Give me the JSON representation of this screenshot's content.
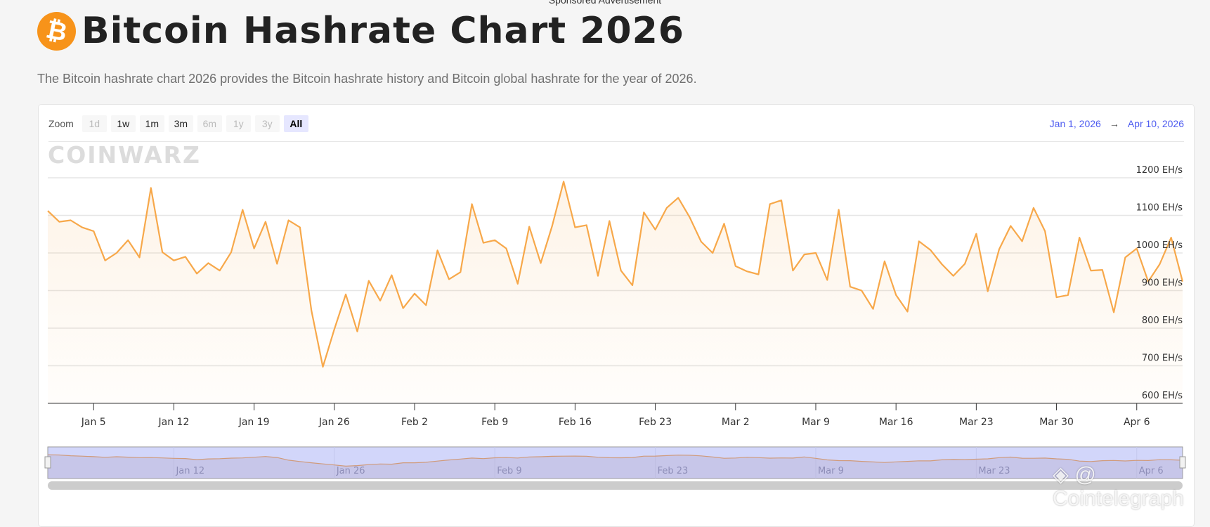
{
  "sponsored": "Sponsored Advertisement",
  "header": {
    "icon": "bitcoin-icon",
    "icon_glyph": "₿",
    "title": "Bitcoin Hashrate Chart 2026",
    "subtitle": "The Bitcoin hashrate chart 2026 provides the Bitcoin hashrate history and Bitcoin global hashrate for the year of 2026."
  },
  "toolbar": {
    "zoom_label": "Zoom",
    "buttons": [
      {
        "label": "1d",
        "state": "disabled"
      },
      {
        "label": "1w",
        "state": "enabled"
      },
      {
        "label": "1m",
        "state": "enabled"
      },
      {
        "label": "3m",
        "state": "enabled"
      },
      {
        "label": "6m",
        "state": "disabled"
      },
      {
        "label": "1y",
        "state": "disabled"
      },
      {
        "label": "3y",
        "state": "disabled"
      },
      {
        "label": "All",
        "state": "active"
      }
    ],
    "range_from": "Jan 1, 2026",
    "range_arrow": "→",
    "range_to": "Apr 10, 2026"
  },
  "logo_watermark": "CoinWarz",
  "credit_watermark": "@ Cointelegraph",
  "colors": {
    "line": "#f7a84a",
    "range_text": "#4e5cf0",
    "navigator": "#d2d6fa",
    "accent": "#f7931a"
  },
  "chart_data": {
    "type": "area",
    "title": "",
    "xlabel": "",
    "ylabel": "",
    "y_unit": "EH/s",
    "ylim": [
      600,
      1200
    ],
    "yticks": [
      "1200 EH/s",
      "1100 EH/s",
      "1000 EH/s",
      "900 EH/s",
      "800 EH/s",
      "700 EH/s",
      "600 EH/s"
    ],
    "ytick_values": [
      1200,
      1100,
      1000,
      900,
      800,
      700,
      600
    ],
    "xlim": [
      "2026-01-01",
      "2026-04-10"
    ],
    "xticks": [
      {
        "label": "Jan 5",
        "date": "2026-01-05"
      },
      {
        "label": "Jan 12",
        "date": "2026-01-12"
      },
      {
        "label": "Jan 19",
        "date": "2026-01-19"
      },
      {
        "label": "Jan 26",
        "date": "2026-01-26"
      },
      {
        "label": "Feb 2",
        "date": "2026-02-02"
      },
      {
        "label": "Feb 9",
        "date": "2026-02-09"
      },
      {
        "label": "Feb 16",
        "date": "2026-02-16"
      },
      {
        "label": "Feb 23",
        "date": "2026-02-23"
      },
      {
        "label": "Mar 2",
        "date": "2026-03-02"
      },
      {
        "label": "Mar 9",
        "date": "2026-03-09"
      },
      {
        "label": "Mar 16",
        "date": "2026-03-16"
      },
      {
        "label": "Mar 23",
        "date": "2026-03-23"
      },
      {
        "label": "Mar 30",
        "date": "2026-03-30"
      },
      {
        "label": "Apr 6",
        "date": "2026-04-06"
      }
    ],
    "navigator_ticks": [
      {
        "label": "Jan 12",
        "date": "2026-01-12"
      },
      {
        "label": "Jan 26",
        "date": "2026-01-26"
      },
      {
        "label": "Feb 9",
        "date": "2026-02-09"
      },
      {
        "label": "Feb 23",
        "date": "2026-02-23"
      },
      {
        "label": "Mar 9",
        "date": "2026-03-09"
      },
      {
        "label": "Mar 23",
        "date": "2026-03-23"
      },
      {
        "label": "Apr 6",
        "date": "2026-04-06"
      }
    ],
    "grid": true,
    "legend": "none",
    "x": [
      "2026-01-01",
      "2026-01-02",
      "2026-01-03",
      "2026-01-04",
      "2026-01-05",
      "2026-01-06",
      "2026-01-07",
      "2026-01-08",
      "2026-01-09",
      "2026-01-10",
      "2026-01-11",
      "2026-01-12",
      "2026-01-13",
      "2026-01-14",
      "2026-01-15",
      "2026-01-16",
      "2026-01-17",
      "2026-01-18",
      "2026-01-19",
      "2026-01-20",
      "2026-01-21",
      "2026-01-22",
      "2026-01-23",
      "2026-01-24",
      "2026-01-25",
      "2026-01-26",
      "2026-01-27",
      "2026-01-28",
      "2026-01-29",
      "2026-01-30",
      "2026-01-31",
      "2026-02-01",
      "2026-02-02",
      "2026-02-03",
      "2026-02-04",
      "2026-02-05",
      "2026-02-06",
      "2026-02-07",
      "2026-02-08",
      "2026-02-09",
      "2026-02-10",
      "2026-02-11",
      "2026-02-12",
      "2026-02-13",
      "2026-02-14",
      "2026-02-15",
      "2026-02-16",
      "2026-02-17",
      "2026-02-18",
      "2026-02-19",
      "2026-02-20",
      "2026-02-21",
      "2026-02-22",
      "2026-02-23",
      "2026-02-24",
      "2026-02-25",
      "2026-02-26",
      "2026-02-27",
      "2026-02-28",
      "2026-03-01",
      "2026-03-02",
      "2026-03-03",
      "2026-03-04",
      "2026-03-05",
      "2026-03-06",
      "2026-03-07",
      "2026-03-08",
      "2026-03-09",
      "2026-03-10",
      "2026-03-11",
      "2026-03-12",
      "2026-03-13",
      "2026-03-14",
      "2026-03-15",
      "2026-03-16",
      "2026-03-17",
      "2026-03-18",
      "2026-03-19",
      "2026-03-20",
      "2026-03-21",
      "2026-03-22",
      "2026-03-23",
      "2026-03-24",
      "2026-03-25",
      "2026-03-26",
      "2026-03-27",
      "2026-03-28",
      "2026-03-29",
      "2026-03-30",
      "2026-03-31",
      "2026-04-01",
      "2026-04-02",
      "2026-04-03",
      "2026-04-04",
      "2026-04-05",
      "2026-04-06",
      "2026-04-07",
      "2026-04-08",
      "2026-04-09",
      "2026-04-10"
    ],
    "values": [
      1112,
      1083,
      1087,
      1068,
      1058,
      980,
      1000,
      1034,
      988,
      1173,
      1002,
      980,
      990,
      945,
      973,
      953,
      1002,
      1115,
      1012,
      1083,
      971,
      1087,
      1068,
      847,
      697,
      797,
      890,
      791,
      926,
      873,
      941,
      853,
      892,
      861,
      1007,
      930,
      949,
      1130,
      1027,
      1034,
      1012,
      918,
      1070,
      973,
      1072,
      1190,
      1068,
      1074,
      939,
      1085,
      953,
      914,
      1108,
      1062,
      1120,
      1147,
      1095,
      1030,
      1000,
      1078,
      965,
      951,
      943,
      1130,
      1140,
      953,
      996,
      1000,
      928,
      1115,
      910,
      900,
      851,
      978,
      888,
      844,
      1031,
      1008,
      970,
      939,
      971,
      1051,
      898,
      1010,
      1072,
      1031,
      1120,
      1058,
      882,
      888,
      1041,
      953,
      955,
      842,
      988,
      1012,
      924,
      970,
      1041,
      924
    ]
  }
}
